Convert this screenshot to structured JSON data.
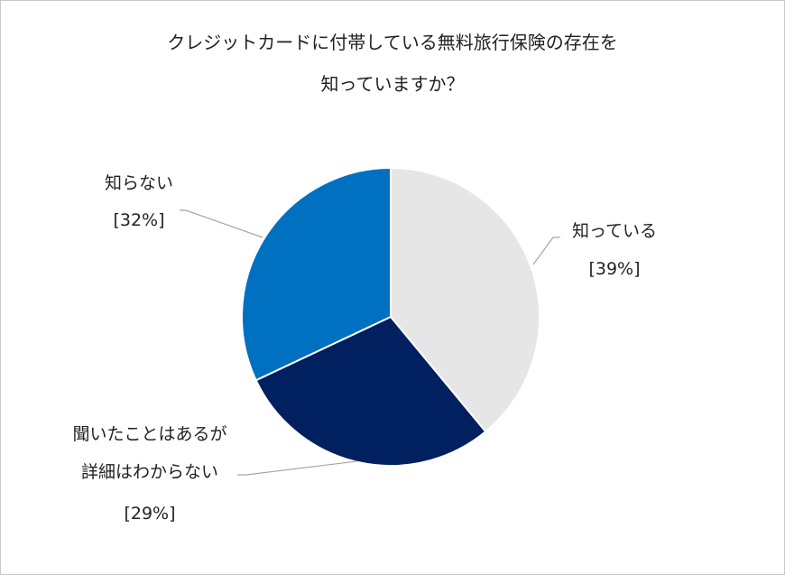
{
  "chart_data": {
    "type": "pie",
    "title": [
      "クレジットカードに付帯している無料旅行保険の存在を",
      "知っていますか？"
    ],
    "categories": [
      "知っている",
      "聞いたことはあるが\n詳細はわからない",
      "知らない"
    ],
    "values": [
      39,
      29,
      32
    ],
    "value_labels": [
      "[39%]",
      "[29%]",
      "[32%]"
    ],
    "colors": [
      "#e7e6e6",
      "#002060",
      "#0070c0"
    ]
  }
}
